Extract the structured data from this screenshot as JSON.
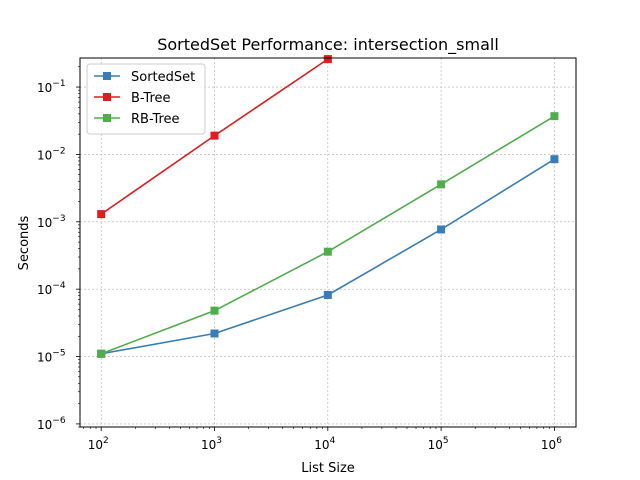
{
  "chart_data": {
    "type": "line",
    "title": "SortedSet Performance: intersection_small",
    "xlabel": "List Size",
    "ylabel": "Seconds",
    "x_scale": "log",
    "y_scale": "log",
    "xlim": [
      65,
      1550000
    ],
    "ylim": [
      9e-07,
      0.27
    ],
    "x_ticks": [
      {
        "value": 100,
        "base": "10",
        "exp": "2"
      },
      {
        "value": 1000,
        "base": "10",
        "exp": "3"
      },
      {
        "value": 10000,
        "base": "10",
        "exp": "4"
      },
      {
        "value": 100000,
        "base": "10",
        "exp": "5"
      },
      {
        "value": 1000000,
        "base": "10",
        "exp": "6"
      }
    ],
    "y_ticks": [
      {
        "value": 1e-06,
        "base": "10",
        "exp": "−6"
      },
      {
        "value": 1e-05,
        "base": "10",
        "exp": "−5"
      },
      {
        "value": 0.0001,
        "base": "10",
        "exp": "−4"
      },
      {
        "value": 0.001,
        "base": "10",
        "exp": "−3"
      },
      {
        "value": 0.01,
        "base": "10",
        "exp": "−2"
      },
      {
        "value": 0.1,
        "base": "10",
        "exp": "−1"
      }
    ],
    "grid": true,
    "legend_position": "upper-left",
    "series": [
      {
        "name": "SortedSet",
        "color": "#377eb8",
        "marker": "square",
        "x": [
          100,
          1000,
          10000,
          100000,
          1000000
        ],
        "y": [
          1.1e-05,
          2.2e-05,
          8.2e-05,
          0.00077,
          0.0085
        ]
      },
      {
        "name": "B-Tree",
        "color": "#e41a1c",
        "marker": "square",
        "x": [
          100,
          1000,
          10000
        ],
        "y": [
          0.0013,
          0.019,
          0.26
        ]
      },
      {
        "name": "RB-Tree",
        "color": "#4daf4a",
        "marker": "square",
        "x": [
          100,
          1000,
          10000,
          100000,
          1000000
        ],
        "y": [
          1.1e-05,
          4.8e-05,
          0.00036,
          0.0036,
          0.037
        ]
      }
    ]
  }
}
